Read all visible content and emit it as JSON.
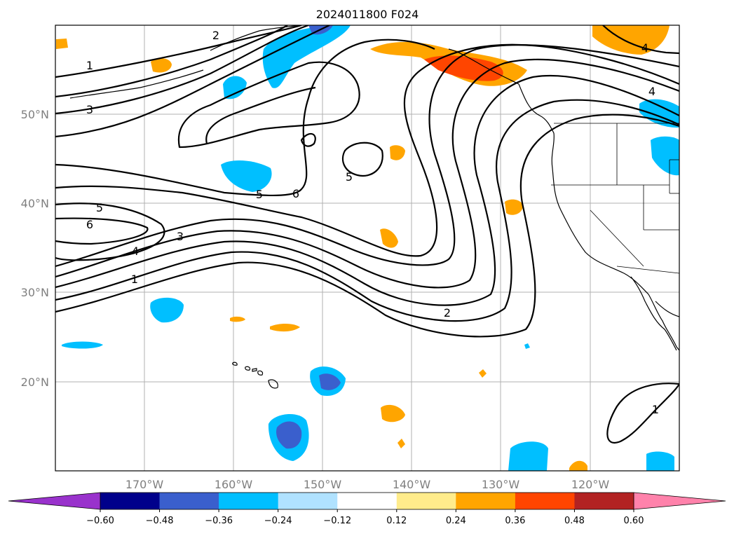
{
  "title": "2024011800 F024",
  "map": {
    "lat_labels": [
      "50°N",
      "40°N",
      "30°N",
      "20°N"
    ],
    "lon_labels": [
      "170°W",
      "160°W",
      "150°W",
      "140°W",
      "130°W",
      "120°W"
    ],
    "contour_labels": [
      "1",
      "3",
      "5",
      "6",
      "4",
      "1",
      "2",
      "5",
      "6",
      "3",
      "4",
      "2",
      "5",
      "4",
      "1"
    ],
    "islands": "Hawaii"
  },
  "colorbar": {
    "ticks": [
      "−0.60",
      "−0.48",
      "−0.36",
      "−0.24",
      "−0.12",
      "0.12",
      "0.24",
      "0.36",
      "0.48",
      "0.60"
    ],
    "colors": [
      "#9932CC",
      "#00008B",
      "#3A5FCD",
      "#00BFFF",
      "#B0E2FF",
      "#FFFFFF",
      "#FFEC8B",
      "#FFA500",
      "#FF4500",
      "#B22222",
      "#FF82AB"
    ]
  }
}
